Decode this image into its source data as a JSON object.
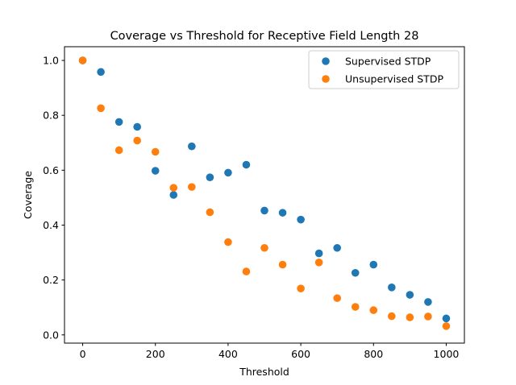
{
  "chart_data": {
    "type": "scatter",
    "title": "Coverage vs Threshold for Receptive Field Length 28",
    "xlabel": "Threshold",
    "ylabel": "Coverage",
    "xlim": [
      -50,
      1050
    ],
    "ylim": [
      -0.03,
      1.05
    ],
    "xticks": [
      0,
      200,
      400,
      600,
      800,
      1000
    ],
    "xtick_labels": [
      "0",
      "200",
      "400",
      "600",
      "800",
      "1000"
    ],
    "yticks": [
      0.0,
      0.2,
      0.4,
      0.6,
      0.8,
      1.0
    ],
    "ytick_labels": [
      "0.0",
      "0.2",
      "0.4",
      "0.6",
      "0.8",
      "1.0"
    ],
    "grid": false,
    "legend_position": "top-right",
    "x": [
      0,
      50,
      100,
      150,
      200,
      250,
      300,
      350,
      400,
      450,
      500,
      550,
      600,
      650,
      700,
      750,
      800,
      850,
      900,
      950,
      1000
    ],
    "series": [
      {
        "name": "Supervised STDP",
        "color": "#1f77b4",
        "values": [
          1.0,
          0.958,
          0.776,
          0.758,
          0.598,
          0.51,
          0.687,
          0.574,
          0.591,
          0.62,
          0.453,
          0.445,
          0.42,
          0.297,
          0.317,
          0.226,
          0.256,
          0.173,
          0.146,
          0.12,
          0.06
        ]
      },
      {
        "name": "Unsupervised STDP",
        "color": "#ff7f0e",
        "values": [
          1.0,
          0.826,
          0.673,
          0.708,
          0.667,
          0.536,
          0.539,
          0.447,
          0.338,
          0.231,
          0.317,
          0.256,
          0.169,
          0.264,
          0.134,
          0.102,
          0.09,
          0.068,
          0.064,
          0.067,
          0.032
        ]
      }
    ]
  }
}
